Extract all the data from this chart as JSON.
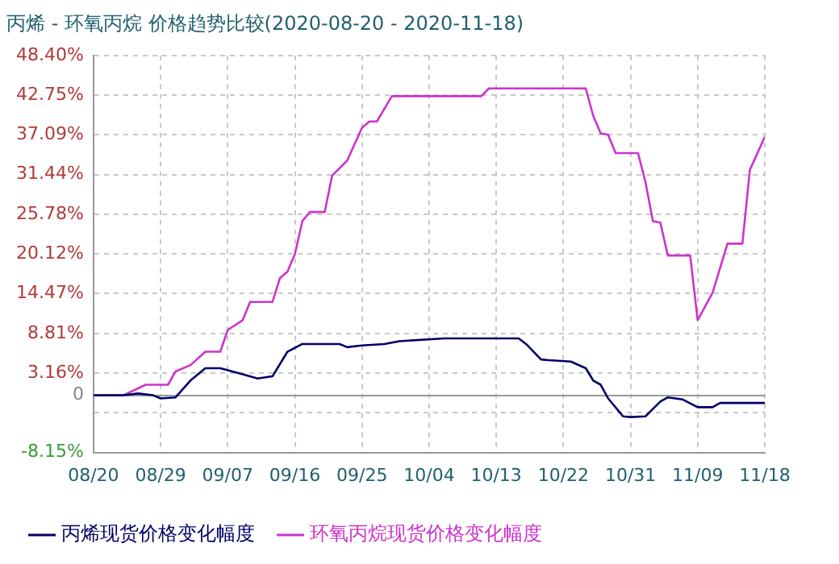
{
  "chart_data": {
    "type": "line",
    "title": "丙烯 - 环氧丙烷 价格趋势比较(2020-08-20 - 2020-11-18)",
    "xlim": [
      "2020-08-20",
      "2020-11-18"
    ],
    "xticks": [
      {
        "value": "2020-08-20",
        "label": "08/20"
      },
      {
        "value": "2020-08-29",
        "label": "08/29"
      },
      {
        "value": "2020-09-07",
        "label": "09/07"
      },
      {
        "value": "2020-09-16",
        "label": "09/16"
      },
      {
        "value": "2020-09-25",
        "label": "09/25"
      },
      {
        "value": "2020-10-04",
        "label": "10/04"
      },
      {
        "value": "2020-10-13",
        "label": "10/13"
      },
      {
        "value": "2020-10-22",
        "label": "10/22"
      },
      {
        "value": "2020-10-31",
        "label": "10/31"
      },
      {
        "value": "2020-11-09",
        "label": "11/09"
      },
      {
        "value": "2020-11-18",
        "label": "11/18"
      }
    ],
    "ylim": [
      -8.15,
      48.4
    ],
    "yticks": [
      {
        "value": -8.15,
        "label": "-8.15%"
      },
      {
        "value": -2.49,
        "label": null
      },
      {
        "value": 0,
        "label": "0"
      },
      {
        "value": 3.16,
        "label": "3.16%"
      },
      {
        "value": 8.81,
        "label": "8.81%"
      },
      {
        "value": 14.47,
        "label": "14.47%"
      },
      {
        "value": 20.12,
        "label": "20.12%"
      },
      {
        "value": 25.78,
        "label": "25.78%"
      },
      {
        "value": 31.44,
        "label": "31.44%"
      },
      {
        "value": 37.09,
        "label": "37.09%"
      },
      {
        "value": 42.75,
        "label": "42.75%"
      },
      {
        "value": 48.4,
        "label": "48.40%"
      }
    ],
    "grid": true,
    "legend": "bottom",
    "marker": "none",
    "line_style": "solid",
    "series": [
      {
        "name": "丙烯现货价格变化幅度",
        "color": "#000066",
        "x": [
          "2020-08-20",
          "2020-08-24",
          "2020-08-26",
          "2020-08-28",
          "2020-08-29",
          "2020-08-31",
          "2020-09-02",
          "2020-09-04",
          "2020-09-06",
          "2020-09-09",
          "2020-09-11",
          "2020-09-13",
          "2020-09-15",
          "2020-09-17",
          "2020-09-22",
          "2020-09-23",
          "2020-09-25",
          "2020-09-28",
          "2020-09-30",
          "2020-10-06",
          "2020-10-16",
          "2020-10-17",
          "2020-10-19",
          "2020-10-20",
          "2020-10-23",
          "2020-10-25",
          "2020-10-26",
          "2020-10-27",
          "2020-10-28",
          "2020-10-30",
          "2020-10-31",
          "2020-11-02",
          "2020-11-04",
          "2020-11-05",
          "2020-11-07",
          "2020-11-09",
          "2020-11-11",
          "2020-11-12",
          "2020-11-18"
        ],
        "values": [
          0,
          0,
          0.25,
          0,
          -0.45,
          -0.3,
          2.1,
          3.85,
          3.85,
          3.0,
          2.4,
          2.7,
          6.2,
          7.3,
          7.3,
          6.85,
          7.1,
          7.3,
          7.7,
          8.1,
          8.1,
          7.3,
          5.1,
          5.0,
          4.8,
          3.85,
          2.1,
          1.5,
          -0.45,
          -3.0,
          -3.1,
          -3.0,
          -0.9,
          -0.3,
          -0.6,
          -1.7,
          -1.7,
          -1.1,
          -1.1
        ]
      },
      {
        "name": "环氧丙烷现货价格变化幅度",
        "color": "#cc33cc",
        "x": [
          "2020-08-20",
          "2020-08-24",
          "2020-08-27",
          "2020-08-30",
          "2020-08-31",
          "2020-09-02",
          "2020-09-04",
          "2020-09-06",
          "2020-09-07",
          "2020-09-09",
          "2020-09-10",
          "2020-09-13",
          "2020-09-14",
          "2020-09-15",
          "2020-09-16",
          "2020-09-17",
          "2020-09-18",
          "2020-09-20",
          "2020-09-21",
          "2020-09-23",
          "2020-09-25",
          "2020-09-26",
          "2020-09-27",
          "2020-09-29",
          "2020-10-11",
          "2020-10-12",
          "2020-10-25",
          "2020-10-26",
          "2020-10-27",
          "2020-10-28",
          "2020-10-29",
          "2020-11-01",
          "2020-11-02",
          "2020-11-03",
          "2020-11-04",
          "2020-11-05",
          "2020-11-08",
          "2020-11-09",
          "2020-11-11",
          "2020-11-13",
          "2020-11-15",
          "2020-11-16",
          "2020-11-18"
        ],
        "values": [
          0,
          0,
          1.5,
          1.5,
          3.4,
          4.3,
          6.2,
          6.2,
          9.3,
          10.7,
          13.3,
          13.3,
          16.7,
          17.6,
          20.1,
          24.8,
          26.1,
          26.1,
          31.3,
          33.4,
          38.1,
          39.0,
          39.0,
          42.6,
          42.6,
          43.7,
          43.7,
          39.8,
          37.3,
          37.1,
          34.5,
          34.5,
          30.4,
          24.8,
          24.6,
          19.9,
          19.9,
          10.7,
          14.6,
          21.6,
          21.6,
          32.1,
          36.8
        ]
      }
    ]
  }
}
